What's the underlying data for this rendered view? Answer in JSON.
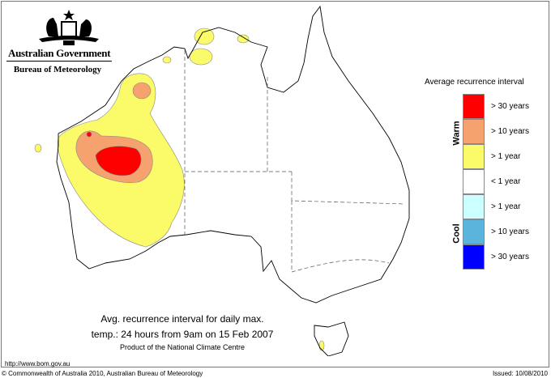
{
  "header": {
    "org": "Australian Government",
    "agency": "Bureau of Meteorology",
    "logo": "commonwealth-coat-of-arms"
  },
  "legend": {
    "title": "Average recurrence interval",
    "warm_label": "Warm",
    "cool_label": "Cool",
    "items": [
      {
        "label": "> 30 years",
        "color": "#ff0000"
      },
      {
        "label": "> 10 years",
        "color": "#f5a26e"
      },
      {
        "label": "> 1 year",
        "color": "#fbfb6a"
      },
      {
        "label": "< 1 year",
        "color": "#ffffff"
      },
      {
        "label": "> 1 year",
        "color": "#ccffff"
      },
      {
        "label": "> 10 years",
        "color": "#5ab4dc"
      },
      {
        "label": "> 30 years",
        "color": "#0000ff"
      }
    ]
  },
  "caption": {
    "line1": "Avg. recurrence interval for daily max.",
    "line2": "temp.: 24 hours from 9am on 15 Feb 2007",
    "line3": "Product of the National Climate Centre"
  },
  "footer": {
    "url": "http://www.bom.gov.au",
    "copyright": "© Commonwealth of Australia 2010, Australian Bureau of Meteorology",
    "issued": "Issued: 10/08/2010"
  }
}
